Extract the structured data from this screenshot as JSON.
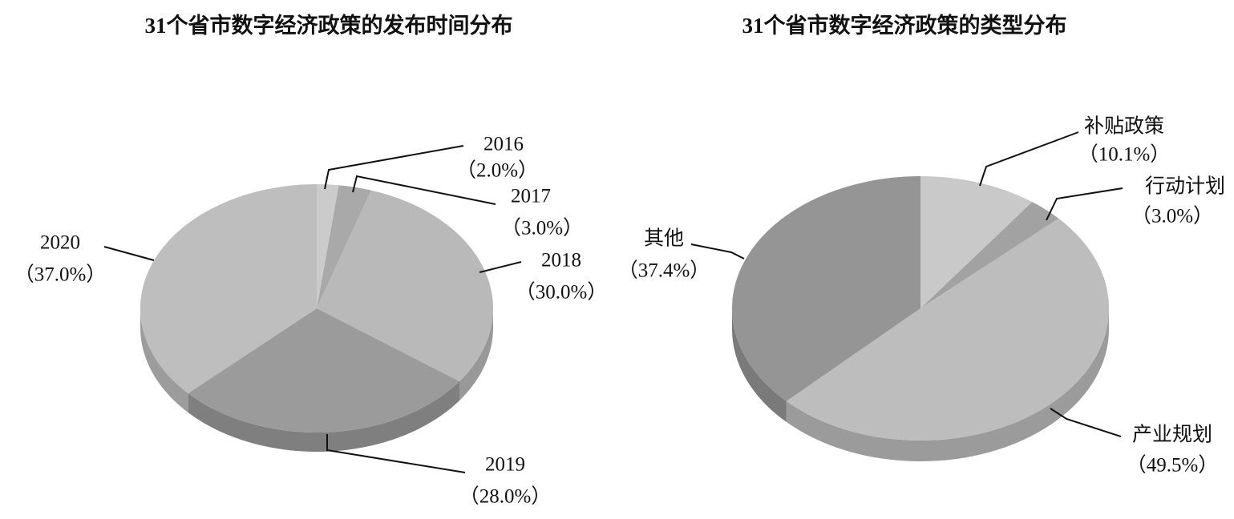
{
  "chart_data": [
    {
      "type": "pie3d",
      "title": "31个省市数字经济政策的发布时间分布",
      "categories": [
        "2016",
        "2017",
        "2018",
        "2019",
        "2020"
      ],
      "values": [
        2.0,
        3.0,
        30.0,
        28.0,
        37.0
      ],
      "value_labels": [
        "（2.0%）",
        "（3.0%）",
        "（30.0%）",
        "（28.0%）",
        "（37.0%）"
      ],
      "colors": [
        "#cbcbcb",
        "#a9a9a9",
        "#b9b9b9",
        "#9b9b9b",
        "#bebebe"
      ]
    },
    {
      "type": "pie3d",
      "title": "31个省市数字经济政策的类型分布",
      "categories": [
        "补贴政策",
        "行动计划",
        "产业规划",
        "其他"
      ],
      "values": [
        10.1,
        3.0,
        49.5,
        37.4
      ],
      "value_labels": [
        "（10.1%）",
        "（3.0%）",
        "（49.5%）",
        "（37.4%）"
      ],
      "colors": [
        "#c9c9c9",
        "#a2a2a2",
        "#bdbdbd",
        "#959595"
      ]
    }
  ]
}
